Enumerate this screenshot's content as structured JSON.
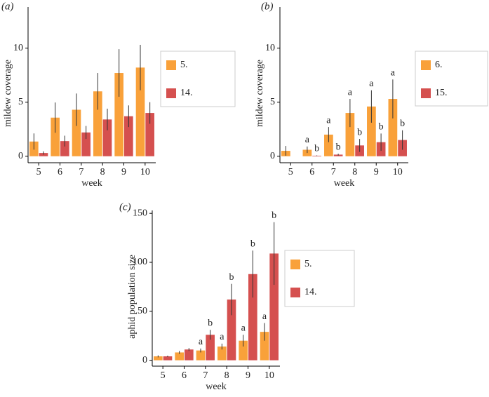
{
  "chart_data": [
    {
      "type": "bar",
      "panel": "(a)",
      "xlabel": "week",
      "ylabel": "mildew coverage",
      "categories": [
        "5",
        "6",
        "7",
        "8",
        "9",
        "10"
      ],
      "ylim": [
        -0.6,
        13.8
      ],
      "yticks": [
        0,
        5,
        10
      ],
      "series": [
        {
          "name": "5.",
          "color": "#f9a13a",
          "values": [
            1.36,
            3.57,
            4.3,
            6.0,
            7.7,
            8.2
          ],
          "errors": [
            0.75,
            1.4,
            1.5,
            1.7,
            2.2,
            2.1
          ]
        },
        {
          "name": "14.",
          "color": "#d5504f",
          "values": [
            0.3,
            1.4,
            2.2,
            3.4,
            3.7,
            4.0
          ],
          "errors": [
            0.15,
            0.5,
            0.6,
            1.0,
            1.0,
            1.0
          ]
        }
      ]
    },
    {
      "type": "bar",
      "panel": "(b)",
      "xlabel": "week",
      "ylabel": "mildew coverage",
      "categories": [
        "5",
        "6",
        "7",
        "8",
        "9",
        "10"
      ],
      "ylim": [
        -0.6,
        13.8
      ],
      "yticks": [
        0,
        5,
        10
      ],
      "series": [
        {
          "name": "6.",
          "color": "#f9a13a",
          "values": [
            0.5,
            0.6,
            2.0,
            4.0,
            4.6,
            5.3
          ],
          "errors": [
            0.45,
            0.3,
            0.7,
            1.3,
            1.5,
            1.8
          ],
          "letters": [
            null,
            "a",
            "a",
            "a",
            "a",
            "a"
          ]
        },
        {
          "name": "15.",
          "color": "#d5504f",
          "values": [
            null,
            0.05,
            0.15,
            1.0,
            1.3,
            1.5
          ],
          "errors": [
            null,
            0.03,
            0.08,
            0.6,
            0.8,
            0.9
          ],
          "letters": [
            null,
            "b",
            "b",
            "b",
            "b",
            "b"
          ]
        }
      ]
    },
    {
      "type": "bar",
      "panel": "(c)",
      "xlabel": "week",
      "ylabel": "aphid population size",
      "categories": [
        "5",
        "6",
        "7",
        "8",
        "9",
        "10"
      ],
      "ylim": [
        -6,
        153
      ],
      "yticks": [
        0,
        50,
        100,
        150
      ],
      "series": [
        {
          "name": "5.",
          "color": "#f9a13a",
          "values": [
            4,
            8,
            10,
            14,
            20,
            29
          ],
          "errors": [
            1,
            1.5,
            2,
            3,
            6,
            9
          ],
          "letters": [
            null,
            null,
            "a",
            "a",
            "a",
            "a"
          ]
        },
        {
          "name": "14.",
          "color": "#d5504f",
          "values": [
            4,
            11,
            26,
            62,
            88,
            109
          ],
          "errors": [
            0.7,
            1.5,
            5,
            16,
            24,
            32
          ],
          "letters": [
            null,
            null,
            "b",
            "b",
            "b",
            "b"
          ]
        }
      ]
    }
  ]
}
